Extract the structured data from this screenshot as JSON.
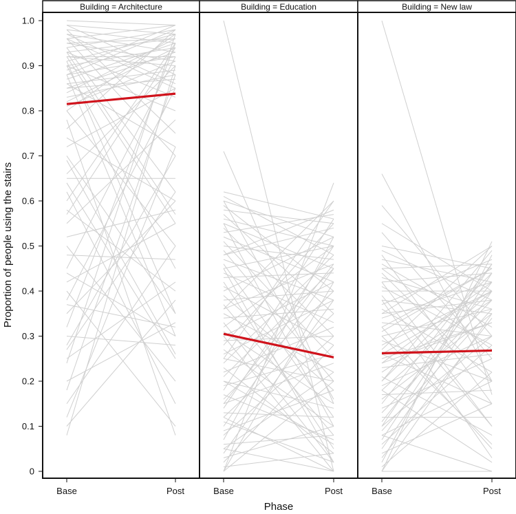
{
  "chart_data": {
    "type": "line",
    "facet_label_prefix": "Building = ",
    "xlabel": "Phase",
    "ylabel": "Proportion of people using the stairs",
    "x": [
      "Base",
      "Post"
    ],
    "ylim": [
      0,
      1.0
    ],
    "yticks": [
      "0",
      "0.1",
      "0.2",
      "0.3",
      "0.4",
      "0.5",
      "0.6",
      "0.7",
      "0.8",
      "0.9",
      "1.0"
    ],
    "grid": false,
    "individual_line_color": "#cfcfcf",
    "mean_line_color": "#d0121b",
    "panels": [
      {
        "building": "Architecture",
        "mean": [
          0.815,
          0.838
        ],
        "individual_lines": [
          [
            1.0,
            0.99
          ],
          [
            0.99,
            0.97
          ],
          [
            0.98,
            0.95
          ],
          [
            0.97,
            0.93
          ],
          [
            0.96,
            0.99
          ],
          [
            0.95,
            0.91
          ],
          [
            0.94,
            0.98
          ],
          [
            0.93,
            0.96
          ],
          [
            0.92,
            0.9
          ],
          [
            0.91,
            0.97
          ],
          [
            0.9,
            0.94
          ],
          [
            0.89,
            0.99
          ],
          [
            0.88,
            0.92
          ],
          [
            0.87,
            0.95
          ],
          [
            0.86,
            0.89
          ],
          [
            0.85,
            0.93
          ],
          [
            0.84,
            0.96
          ],
          [
            0.83,
            0.88
          ],
          [
            0.82,
            0.94
          ],
          [
            0.81,
            0.91
          ],
          [
            0.8,
            0.97
          ],
          [
            0.99,
            0.88
          ],
          [
            0.96,
            0.85
          ],
          [
            0.93,
            0.83
          ],
          [
            0.9,
            0.8
          ],
          [
            0.97,
            0.86
          ],
          [
            0.95,
            0.96
          ],
          [
            0.92,
            0.92
          ],
          [
            0.88,
            0.98
          ],
          [
            0.85,
            0.87
          ],
          [
            0.98,
            0.75
          ],
          [
            0.96,
            0.7
          ],
          [
            0.94,
            0.62
          ],
          [
            0.92,
            0.55
          ],
          [
            0.9,
            0.45
          ],
          [
            0.88,
            0.3
          ],
          [
            0.91,
            0.35
          ],
          [
            0.93,
            0.57
          ],
          [
            0.86,
            0.72
          ],
          [
            0.8,
            0.5
          ],
          [
            0.76,
            0.98
          ],
          [
            0.74,
            0.6
          ],
          [
            0.72,
            0.85
          ],
          [
            0.7,
            0.35
          ],
          [
            0.66,
            0.9
          ],
          [
            0.65,
            0.65
          ],
          [
            0.64,
            0.25
          ],
          [
            0.6,
            0.95
          ],
          [
            0.58,
            0.4
          ],
          [
            0.55,
            0.78
          ],
          [
            0.5,
            0.2
          ],
          [
            0.48,
            0.47
          ],
          [
            0.45,
            0.92
          ],
          [
            0.42,
            0.55
          ],
          [
            0.4,
            0.1
          ],
          [
            0.38,
            0.85
          ],
          [
            0.37,
            0.32
          ],
          [
            0.35,
            0.6
          ],
          [
            0.32,
            0.95
          ],
          [
            0.3,
            0.28
          ],
          [
            0.28,
            0.7
          ],
          [
            0.25,
            0.42
          ],
          [
            0.24,
            0.97
          ],
          [
            0.2,
            0.33
          ],
          [
            0.18,
            0.88
          ],
          [
            0.15,
            0.5
          ],
          [
            0.12,
            0.72
          ],
          [
            0.1,
            0.38
          ],
          [
            0.08,
            0.9
          ],
          [
            0.78,
            0.08
          ],
          [
            0.62,
            0.15
          ],
          [
            0.52,
            0.58
          ],
          [
            0.44,
            0.3
          ],
          [
            0.27,
            0.62
          ],
          [
            0.57,
            0.94
          ],
          [
            0.69,
            0.26
          ]
        ]
      },
      {
        "building": "Education",
        "mean": [
          0.305,
          0.253
        ],
        "individual_lines": [
          [
            1.0,
            0.0
          ],
          [
            0.71,
            0.15
          ],
          [
            0.62,
            0.56
          ],
          [
            0.61,
            0.48
          ],
          [
            0.6,
            0.52
          ],
          [
            0.59,
            0.4
          ],
          [
            0.58,
            0.55
          ],
          [
            0.57,
            0.35
          ],
          [
            0.56,
            0.5
          ],
          [
            0.55,
            0.45
          ],
          [
            0.54,
            0.3
          ],
          [
            0.53,
            0.57
          ],
          [
            0.52,
            0.42
          ],
          [
            0.51,
            0.25
          ],
          [
            0.5,
            0.47
          ],
          [
            0.49,
            0.2
          ],
          [
            0.48,
            0.54
          ],
          [
            0.47,
            0.38
          ],
          [
            0.46,
            0.12
          ],
          [
            0.45,
            0.5
          ],
          [
            0.44,
            0.33
          ],
          [
            0.43,
            0.44
          ],
          [
            0.42,
            0.05
          ],
          [
            0.41,
            0.28
          ],
          [
            0.4,
            0.52
          ],
          [
            0.39,
            0.18
          ],
          [
            0.38,
            0.4
          ],
          [
            0.37,
            0.08
          ],
          [
            0.36,
            0.46
          ],
          [
            0.35,
            0.22
          ],
          [
            0.34,
            0.36
          ],
          [
            0.33,
            0.02
          ],
          [
            0.32,
            0.5
          ],
          [
            0.31,
            0.15
          ],
          [
            0.3,
            0.42
          ],
          [
            0.29,
            0.3
          ],
          [
            0.28,
            0.55
          ],
          [
            0.27,
            0.1
          ],
          [
            0.26,
            0.38
          ],
          [
            0.25,
            0.2
          ],
          [
            0.24,
            0.48
          ],
          [
            0.23,
            0.04
          ],
          [
            0.22,
            0.32
          ],
          [
            0.21,
            0.45
          ],
          [
            0.2,
            0.14
          ],
          [
            0.19,
            0.26
          ],
          [
            0.18,
            0.56
          ],
          [
            0.17,
            0.07
          ],
          [
            0.16,
            0.4
          ],
          [
            0.15,
            0.24
          ],
          [
            0.14,
            0.5
          ],
          [
            0.13,
            0.12
          ],
          [
            0.12,
            0.35
          ],
          [
            0.11,
            0.02
          ],
          [
            0.1,
            0.45
          ],
          [
            0.09,
            0.18
          ],
          [
            0.08,
            0.3
          ],
          [
            0.07,
            0.52
          ],
          [
            0.06,
            0.08
          ],
          [
            0.05,
            0.22
          ],
          [
            0.04,
            0.38
          ],
          [
            0.03,
            0.1
          ],
          [
            0.02,
            0.28
          ],
          [
            0.01,
            0.04
          ],
          [
            0.0,
            0.64
          ],
          [
            0.0,
            0.42
          ],
          [
            0.0,
            0.2
          ],
          [
            0.05,
            0.0
          ],
          [
            0.12,
            0.0
          ],
          [
            0.2,
            0.06
          ],
          [
            0.3,
            0.0
          ],
          [
            0.45,
            0.02
          ],
          [
            0.55,
            0.1
          ],
          [
            0.6,
            0.16
          ],
          [
            0.48,
            0.58
          ],
          [
            0.36,
            0.6
          ],
          [
            0.25,
            0.6
          ],
          [
            0.15,
            0.46
          ]
        ]
      },
      {
        "building": "New law",
        "mean": [
          0.262,
          0.268
        ],
        "individual_lines": [
          [
            1.0,
            0.17
          ],
          [
            0.66,
            0.2
          ],
          [
            0.59,
            0.3
          ],
          [
            0.55,
            0.4
          ],
          [
            0.53,
            0.25
          ],
          [
            0.5,
            0.45
          ],
          [
            0.49,
            0.38
          ],
          [
            0.48,
            0.15
          ],
          [
            0.47,
            0.42
          ],
          [
            0.46,
            0.32
          ],
          [
            0.45,
            0.46
          ],
          [
            0.44,
            0.2
          ],
          [
            0.43,
            0.36
          ],
          [
            0.42,
            0.44
          ],
          [
            0.41,
            0.28
          ],
          [
            0.4,
            0.4
          ],
          [
            0.39,
            0.1
          ],
          [
            0.38,
            0.35
          ],
          [
            0.37,
            0.47
          ],
          [
            0.36,
            0.22
          ],
          [
            0.35,
            0.38
          ],
          [
            0.34,
            0.42
          ],
          [
            0.33,
            0.3
          ],
          [
            0.32,
            0.05
          ],
          [
            0.31,
            0.45
          ],
          [
            0.3,
            0.36
          ],
          [
            0.29,
            0.2
          ],
          [
            0.28,
            0.4
          ],
          [
            0.27,
            0.5
          ],
          [
            0.26,
            0.15
          ],
          [
            0.25,
            0.33
          ],
          [
            0.24,
            0.42
          ],
          [
            0.23,
            0.26
          ],
          [
            0.22,
            0.38
          ],
          [
            0.21,
            0.08
          ],
          [
            0.2,
            0.44
          ],
          [
            0.19,
            0.3
          ],
          [
            0.18,
            0.4
          ],
          [
            0.17,
            0.18
          ],
          [
            0.16,
            0.35
          ],
          [
            0.15,
            0.46
          ],
          [
            0.14,
            0.25
          ],
          [
            0.13,
            0.38
          ],
          [
            0.12,
            0.12
          ],
          [
            0.11,
            0.42
          ],
          [
            0.1,
            0.3
          ],
          [
            0.09,
            0.36
          ],
          [
            0.08,
            0.2
          ],
          [
            0.07,
            0.44
          ],
          [
            0.06,
            0.28
          ],
          [
            0.05,
            0.4
          ],
          [
            0.04,
            0.15
          ],
          [
            0.03,
            0.34
          ],
          [
            0.02,
            0.48
          ],
          [
            0.01,
            0.22
          ],
          [
            0.0,
            0.51
          ],
          [
            0.0,
            0.0
          ],
          [
            0.0,
            0.35
          ],
          [
            0.08,
            0.0
          ],
          [
            0.18,
            0.02
          ],
          [
            0.3,
            0.06
          ],
          [
            0.42,
            0.1
          ],
          [
            0.35,
            0.5
          ],
          [
            0.2,
            0.49
          ],
          [
            0.1,
            0.46
          ],
          [
            0.45,
            0.27
          ],
          [
            0.26,
            0.4
          ],
          [
            0.38,
            0.03
          ],
          [
            0.24,
            0.33
          ],
          [
            0.32,
            0.45
          ]
        ]
      }
    ]
  }
}
